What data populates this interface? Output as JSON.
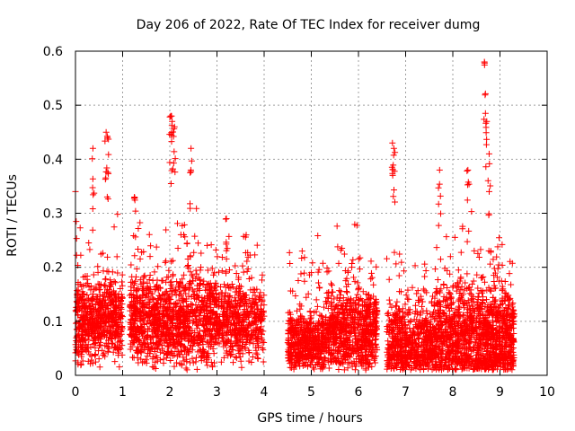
{
  "chart_data": {
    "type": "scatter",
    "title": "Day 206 of 2022, Rate Of TEC Index for receiver dumg",
    "xlabel": "GPS time / hours",
    "ylabel": "ROTI / TECUs",
    "xlim": [
      0,
      10
    ],
    "ylim": [
      0,
      0.6
    ],
    "xticks": [
      0,
      1,
      2,
      3,
      4,
      5,
      6,
      7,
      8,
      9,
      10
    ],
    "yticks": [
      0,
      0.1,
      0.2,
      0.3,
      0.4,
      0.5,
      0.6
    ],
    "xtick_labels": [
      "0",
      "1",
      "2",
      "3",
      "4",
      "5",
      "6",
      "7",
      "8",
      "9",
      "10"
    ],
    "ytick_labels": [
      "0",
      "0.1",
      "0.2",
      "0.3",
      "0.4",
      "0.5",
      "0.6"
    ],
    "grid": true,
    "marker": "+",
    "color": "#ff0000",
    "series": [
      {
        "name": "ROTI",
        "segments": [
          {
            "x_range": [
              0.0,
              1.0
            ],
            "base_mean": 0.1,
            "spread": 0.07,
            "count": 650
          },
          {
            "x_range": [
              1.15,
              2.0
            ],
            "base_mean": 0.1,
            "spread": 0.07,
            "count": 560
          },
          {
            "x_range": [
              2.0,
              3.0
            ],
            "base_mean": 0.1,
            "spread": 0.08,
            "count": 620
          },
          {
            "x_range": [
              3.0,
              4.0
            ],
            "base_mean": 0.1,
            "spread": 0.06,
            "count": 520
          },
          {
            "x_range": [
              4.5,
              5.3
            ],
            "base_mean": 0.06,
            "spread": 0.05,
            "count": 520
          },
          {
            "x_range": [
              5.3,
              6.4
            ],
            "base_mean": 0.08,
            "spread": 0.07,
            "count": 760
          },
          {
            "x_range": [
              6.6,
              7.6
            ],
            "base_mean": 0.06,
            "spread": 0.06,
            "count": 640
          },
          {
            "x_range": [
              7.6,
              8.6
            ],
            "base_mean": 0.07,
            "spread": 0.08,
            "count": 760
          },
          {
            "x_range": [
              8.6,
              9.3
            ],
            "base_mean": 0.07,
            "spread": 0.08,
            "count": 620
          }
        ],
        "peaks": [
          {
            "x": 0.0,
            "y": 0.34
          },
          {
            "x": 0.37,
            "y": 0.42
          },
          {
            "x": 0.65,
            "y": 0.45
          },
          {
            "x": 0.68,
            "y": 0.44
          },
          {
            "x": 1.25,
            "y": 0.33
          },
          {
            "x": 2.02,
            "y": 0.48
          },
          {
            "x": 2.05,
            "y": 0.47
          },
          {
            "x": 2.1,
            "y": 0.46
          },
          {
            "x": 2.45,
            "y": 0.42
          },
          {
            "x": 3.2,
            "y": 0.29
          },
          {
            "x": 3.62,
            "y": 0.26
          },
          {
            "x": 6.72,
            "y": 0.43
          },
          {
            "x": 6.75,
            "y": 0.42
          },
          {
            "x": 7.72,
            "y": 0.38
          },
          {
            "x": 8.32,
            "y": 0.38
          },
          {
            "x": 8.67,
            "y": 0.58
          },
          {
            "x": 8.72,
            "y": 0.47
          },
          {
            "x": 8.77,
            "y": 0.41
          }
        ]
      }
    ]
  }
}
